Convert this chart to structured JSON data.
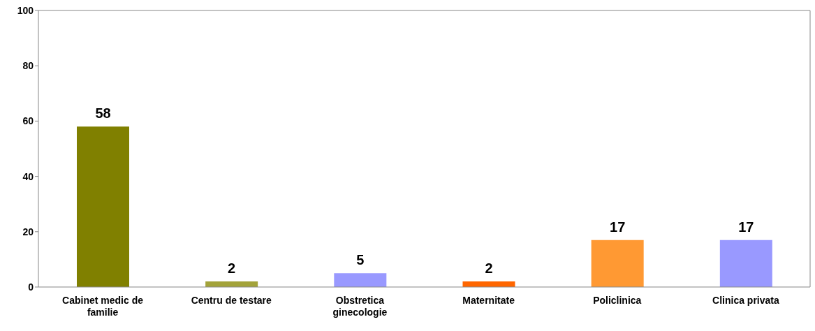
{
  "chart_data": {
    "type": "bar",
    "categories": [
      "Cabinet medic de familie",
      "Centru de testare",
      "Obstretica ginecologie",
      "Maternitate",
      "Policlinica",
      "Clinica privata"
    ],
    "values": [
      58,
      2,
      5,
      2,
      17,
      17
    ],
    "colors": [
      "#808000",
      "#a3a33a",
      "#9999ff",
      "#ff6600",
      "#ff9933",
      "#9999ff"
    ],
    "ylim": [
      0,
      100
    ],
    "yticks": [
      0,
      20,
      40,
      60,
      80,
      100
    ],
    "grid": false,
    "data_labels": true
  }
}
